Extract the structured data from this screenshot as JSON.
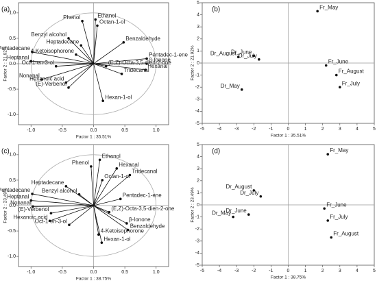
{
  "chart_data": [
    {
      "type": "biplot",
      "panel_label": "(a)",
      "x_label": "Factor 1 : 35.51%",
      "y_label": "Factor 2 : 21.92%",
      "xlim": [
        -1.2,
        1.2
      ],
      "ylim": [
        -1.2,
        1.2
      ],
      "xticks": [
        {
          "value": -1,
          "label": "-1.0"
        },
        -0.5,
        {
          "value": 0,
          "label": "0.0"
        },
        0.5,
        {
          "value": 1,
          "label": "1.0"
        }
      ],
      "yticks": [
        {
          "value": -1,
          "label": "-1.0"
        },
        -0.5,
        {
          "value": 0,
          "label": "0.0"
        },
        0.5,
        {
          "value": 1,
          "label": "1.0"
        }
      ],
      "color": "#111111",
      "labels": [
        "Phenol",
        "Ethanol",
        "Octan-1-ol",
        "Benzyl alcohol",
        "Heptadecane",
        "Benzaldehyde",
        "4-Ketoisophorone",
        "Pentadecane",
        "Heptanal",
        "Pentadec-1-ene",
        "β-Ionone",
        "(E,Z)-Octa-3,5-dien-2-one",
        "Oct-1-en-3-ol",
        "Hexanal",
        "Tridecanal",
        "Nonanal",
        "Hexanoic acid",
        "(E)-Verbenol",
        "Hexan-1-ol"
      ],
      "x": [
        -0.18,
        0.03,
        0.06,
        -0.4,
        -0.2,
        0.48,
        -0.28,
        -0.98,
        -1.0,
        0.85,
        0.85,
        0.2,
        -0.6,
        0.83,
        0.45,
        -0.83,
        -0.44,
        -0.4,
        0.15
      ],
      "y": [
        0.84,
        0.87,
        0.75,
        0.5,
        0.36,
        0.42,
        0.18,
        0.23,
        0.05,
        0.1,
        0.0,
        -0.05,
        -0.05,
        -0.12,
        -0.2,
        -0.31,
        -0.37,
        -0.47,
        -0.73
      ]
    },
    {
      "type": "scatter",
      "panel_label": "(b)",
      "x_label": "Factor 1 : 35.51%",
      "y_label": "Factor 2 : 21.92%",
      "xlim": [
        -5,
        5
      ],
      "ylim": [
        -5,
        5
      ],
      "xticks": [
        -5,
        -4,
        -3,
        -2,
        -1,
        0,
        1,
        2,
        3,
        4,
        5
      ],
      "yticks": [
        -5,
        -4,
        -3,
        -2,
        -1,
        0,
        1,
        2,
        3,
        4,
        5
      ],
      "color": "#111111",
      "labels": [
        "Fr_May",
        "Dr_August",
        "Dr_June",
        "Dr_July",
        "Fr_June",
        "Fr_August",
        "Fr_July",
        "Dr_May"
      ],
      "x": [
        1.7,
        -2.9,
        -2.0,
        -1.7,
        2.2,
        2.8,
        3.0,
        -2.7
      ],
      "y": [
        4.3,
        0.5,
        0.6,
        0.3,
        -0.2,
        -1.0,
        -2.0,
        -2.2
      ]
    },
    {
      "type": "biplot",
      "panel_label": "(c)",
      "x_label": "Factor 1 : 38.75%",
      "y_label": "Factor 2 : 23.49%",
      "xlim": [
        -1.2,
        1.2
      ],
      "ylim": [
        -1.2,
        1.2
      ],
      "xticks": [
        {
          "value": -1,
          "label": "-1.0"
        },
        -0.5,
        {
          "value": 0,
          "label": "0.0"
        },
        0.5,
        {
          "value": 1,
          "label": "1.0"
        }
      ],
      "yticks": [
        {
          "value": -1,
          "label": "-1.0"
        },
        -0.5,
        {
          "value": 0,
          "label": "0.0"
        },
        0.5,
        {
          "value": 1,
          "label": "1.0"
        }
      ],
      "color": "#111111",
      "labels": [
        "Ethanol",
        "Phenol",
        "Hexanal",
        "Octan-1-ol",
        "Tridecanal",
        "Heptadecane",
        "Pentadecane",
        "Benzyl alcohol",
        "Pentadec-1-ene",
        "Heptanal",
        "Nonanal",
        "(E)-Verbenol",
        "(E,Z)-Octa-3,5-dien-2-one",
        "β-Ionone",
        "Benzaldehyde",
        "Hexanoic acid",
        "Oct-1-en-3-ol",
        "4-Ketoisophorone",
        "Hexan-1-ol"
      ],
      "x": [
        0.1,
        -0.04,
        0.37,
        0.14,
        0.58,
        -0.44,
        -0.98,
        -0.23,
        0.43,
        -1.0,
        -0.97,
        -0.68,
        0.25,
        0.53,
        0.55,
        -0.7,
        -0.39,
        0.08,
        0.13
      ],
      "y": [
        0.9,
        0.77,
        0.73,
        0.5,
        0.6,
        0.38,
        0.23,
        0.22,
        0.13,
        0.1,
        -0.02,
        -0.15,
        -0.13,
        -0.35,
        -0.48,
        -0.3,
        -0.38,
        -0.57,
        -0.73
      ]
    },
    {
      "type": "scatter",
      "panel_label": "(d)",
      "x_label": "Factor 1 : 38.75%",
      "y_label": "Factor 2 : 23.49%",
      "xlim": [
        -5,
        5
      ],
      "ylim": [
        -5,
        5
      ],
      "xticks": [
        -5,
        -4,
        -3,
        -2,
        -1,
        0,
        1,
        2,
        3,
        4,
        5
      ],
      "yticks": [
        -5,
        -4,
        -3,
        -2,
        -1,
        0,
        1,
        2,
        3,
        4,
        5
      ],
      "color": "#111111",
      "labels": [
        "Fr_May",
        "Dr_August",
        "Dr_July",
        "Fr_June",
        "Dr_May",
        "Dr_June",
        "Fr_July",
        "Fr_August"
      ],
      "x": [
        2.3,
        -2.0,
        -1.6,
        2.1,
        -3.2,
        -2.3,
        2.3,
        2.5
      ],
      "y": [
        4.2,
        1.2,
        0.7,
        -0.3,
        -1.0,
        -0.8,
        -1.3,
        -2.7
      ]
    }
  ]
}
